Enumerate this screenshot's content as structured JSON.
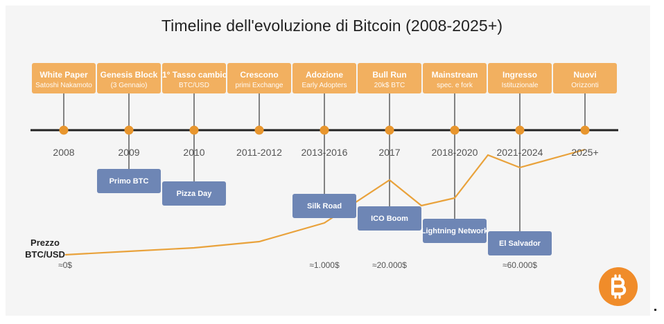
{
  "title": "Timeline dell'evoluzione di Bitcoin (2008-2025+)",
  "colors": {
    "stage": "#f2b060",
    "event": "#6e86b5",
    "axis": "#222222",
    "dot": "#e8962e",
    "price_line": "#e9a23b",
    "connector": "#444444",
    "logo": "#f08c2a"
  },
  "stages": [
    {
      "title": "White Paper",
      "subtitle": "Satoshi Nakamoto"
    },
    {
      "title": "Genesis Block",
      "subtitle": "(3 Gennaio)"
    },
    {
      "title": "1° Tasso cambio",
      "subtitle": "BTC/USD"
    },
    {
      "title": "Crescono",
      "subtitle": "primi Exchange"
    },
    {
      "title": "Adozione",
      "subtitle": "Early Adopters"
    },
    {
      "title": "Bull Run",
      "subtitle": "20k$ BTC"
    },
    {
      "title": "Mainstream",
      "subtitle": "spec. e fork"
    },
    {
      "title": "Ingresso",
      "subtitle": "Istituzionale"
    },
    {
      "title": "Nuovi",
      "subtitle": "Orizzonti"
    }
  ],
  "years": [
    "2008",
    "2009",
    "2010",
    "2011-2012",
    "2013-2016",
    "2017",
    "2018-2020",
    "2021-2024",
    "2025+"
  ],
  "events": [
    {
      "label": "Primo BTC"
    },
    {
      "label": "Pizza Day"
    },
    {
      "label": "Silk Road"
    },
    {
      "label": "ICO Boom"
    },
    {
      "label": "Lightning Network"
    },
    {
      "label": "El Salvador"
    }
  ],
  "price": {
    "label": "Prezzo BTC/USD",
    "annotations": [
      "≈0$",
      "≈1.000$",
      "≈20.000$",
      "≈60.000$"
    ]
  },
  "logo_icon": "bitcoin-icon"
}
